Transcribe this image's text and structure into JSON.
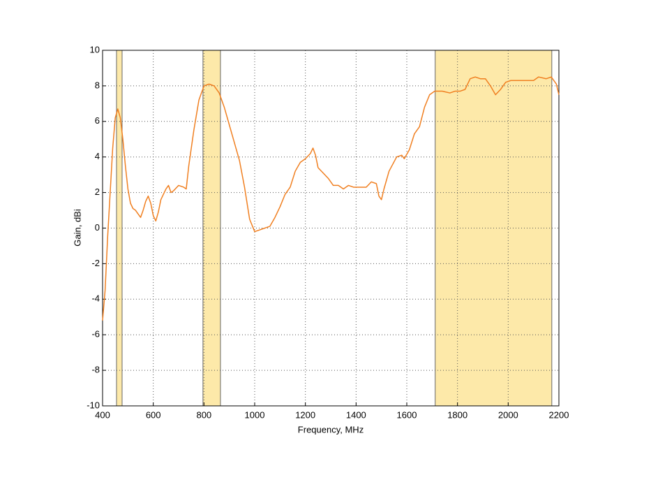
{
  "chart_data": {
    "type": "line",
    "x_label": "Frequency, MHz",
    "y_label": "Gain, dBi",
    "xlim": [
      400,
      2200
    ],
    "xticks": [
      400,
      600,
      800,
      1000,
      1200,
      1400,
      1600,
      1800,
      2000,
      2200
    ],
    "ylim": [
      -10,
      10
    ],
    "yticks": [
      -10,
      -8,
      -6,
      -4,
      -2,
      0,
      2,
      4,
      6,
      8,
      10
    ],
    "grid": true,
    "bands": [
      [
        455,
        477
      ],
      [
        796,
        865
      ],
      [
        1712,
        2172
      ]
    ],
    "band_color": "#fde9a9",
    "series": [
      {
        "color": "#f07f20",
        "x": [
          400,
          410,
          420,
          430,
          440,
          450,
          460,
          470,
          480,
          490,
          500,
          510,
          520,
          530,
          540,
          550,
          560,
          570,
          580,
          590,
          600,
          610,
          620,
          630,
          650,
          660,
          670,
          680,
          700,
          720,
          730,
          740,
          760,
          780,
          800,
          820,
          840,
          860,
          880,
          900,
          920,
          940,
          960,
          980,
          1000,
          1020,
          1040,
          1060,
          1080,
          1100,
          1120,
          1140,
          1160,
          1180,
          1200,
          1220,
          1230,
          1240,
          1250,
          1270,
          1290,
          1310,
          1330,
          1350,
          1370,
          1390,
          1420,
          1440,
          1460,
          1480,
          1490,
          1500,
          1510,
          1530,
          1560,
          1580,
          1590,
          1610,
          1630,
          1650,
          1670,
          1690,
          1710,
          1740,
          1770,
          1790,
          1810,
          1830,
          1850,
          1870,
          1890,
          1910,
          1930,
          1950,
          1970,
          1990,
          2010,
          2040,
          2070,
          2100,
          2120,
          2150,
          2170,
          2190,
          2200
        ],
        "values": [
          -5.2,
          -3.5,
          -0.5,
          2,
          4.5,
          6.2,
          6.7,
          6.2,
          5,
          3.5,
          2.2,
          1.4,
          1.1,
          1.0,
          0.8,
          0.6,
          1.0,
          1.5,
          1.8,
          1.4,
          0.7,
          0.4,
          0.9,
          1.6,
          2.2,
          2.4,
          2.0,
          2.1,
          2.4,
          2.3,
          2.2,
          3.5,
          5.5,
          7.2,
          8.0,
          8.1,
          8.0,
          7.6,
          6.8,
          5.8,
          4.8,
          3.8,
          2.3,
          0.5,
          -0.2,
          -0.1,
          0,
          0.1,
          0.6,
          1.2,
          1.9,
          2.3,
          3.2,
          3.7,
          3.9,
          4.2,
          4.5,
          4.1,
          3.4,
          3.1,
          2.8,
          2.4,
          2.4,
          2.2,
          2.4,
          2.3,
          2.3,
          2.3,
          2.6,
          2.5,
          1.8,
          1.6,
          2.2,
          3.2,
          4.0,
          4.1,
          3.9,
          4.4,
          5.3,
          5.7,
          6.8,
          7.5,
          7.7,
          7.7,
          7.6,
          7.7,
          7.7,
          7.8,
          8.4,
          8.5,
          8.4,
          8.4,
          8.0,
          7.5,
          7.8,
          8.2,
          8.3,
          8.3,
          8.3,
          8.3,
          8.5,
          8.4,
          8.5,
          8.1,
          7.5
        ]
      }
    ]
  }
}
